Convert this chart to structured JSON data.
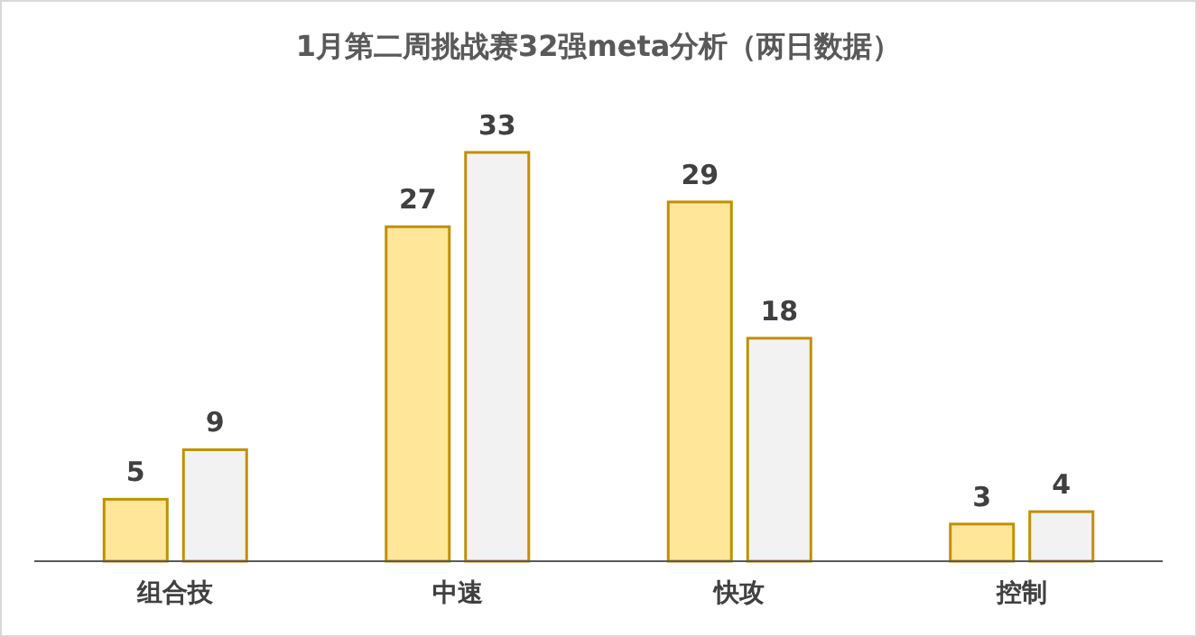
{
  "chart_data": {
    "type": "bar",
    "title": "1月第二周挑战赛32强meta分析（两日数据）",
    "categories": [
      "组合技",
      "中速",
      "快攻",
      "控制"
    ],
    "series": [
      {
        "color": "#ffe699",
        "values": [
          5,
          27,
          29,
          3
        ]
      },
      {
        "color": "#f2f2f2",
        "values": [
          9,
          33,
          18,
          4
        ]
      }
    ],
    "data_labels": true
  }
}
